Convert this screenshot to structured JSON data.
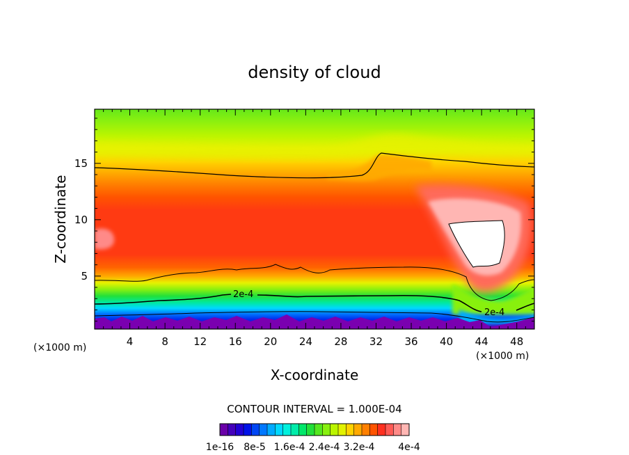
{
  "chart_data": {
    "type": "heatmap",
    "title": "density of cloud",
    "xlabel": "X-coordinate",
    "ylabel": "Z-coordinate",
    "x_unit": "(×1000 m)",
    "x_unit_right": "(×1000 m)",
    "xlim": [
      0,
      50
    ],
    "ylim": [
      0.3,
      19.8
    ],
    "x_ticks": [
      4,
      8,
      12,
      16,
      20,
      24,
      28,
      32,
      36,
      40,
      44,
      48
    ],
    "y_ticks": [
      5,
      10,
      15
    ],
    "contour_interval_text": "CONTOUR INTERVAL = 1.000E-04",
    "contour_labels": [
      {
        "text": "2e-4",
        "x": 17.5,
        "z": 3.2
      },
      {
        "text": "2e-4",
        "x": 46,
        "z": 1.3
      }
    ],
    "colorbar": {
      "min": 1e-16,
      "max": 0.00044,
      "steps": 22,
      "tick_labels": [
        "1e-16",
        "8e-5",
        "1.6e-4",
        "2.4e-4",
        "3.2e-4",
        "4e-4"
      ],
      "colors": [
        "#6a00a8",
        "#4400bb",
        "#2200d4",
        "#0012e8",
        "#0046f4",
        "#0078ff",
        "#00aaff",
        "#00d8ff",
        "#00f0dd",
        "#00ecaa",
        "#00e86a",
        "#22e03a",
        "#55e820",
        "#88f010",
        "#bbf500",
        "#e2f200",
        "#ffd200",
        "#ffaa00",
        "#ff8000",
        "#ff5400",
        "#ff3020",
        "#ff5a55",
        "#ff8a88",
        "#ffb6b3"
      ]
    }
  }
}
